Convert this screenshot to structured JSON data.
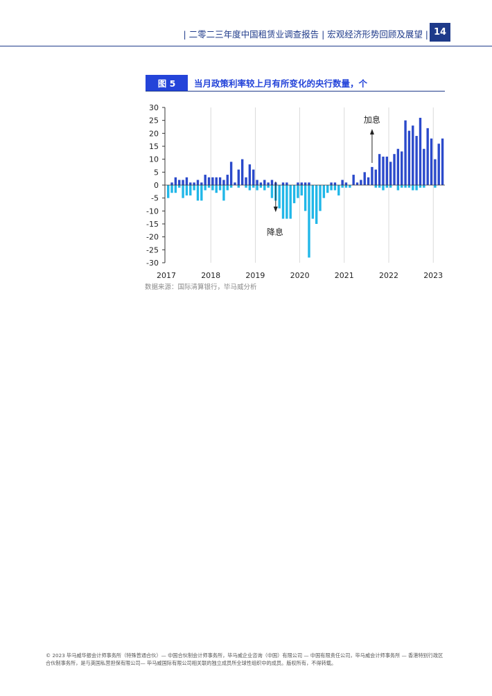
{
  "header": {
    "title": "| 二零二三年度中国租赁业调查报告 | 宏观经济形势回顾及展望 |",
    "page_number": "14"
  },
  "figure": {
    "tag": "图 5",
    "title": "当月政策利率较上月有所变化的央行数量，个",
    "source": "数据来源：国际清算银行，毕马威分析"
  },
  "chart_data": {
    "type": "bar",
    "series": [
      {
        "name": "加息",
        "color": "#2b4acb"
      },
      {
        "name": "降息",
        "color": "#21b7e8"
      }
    ],
    "x_tick_labels": [
      "2017",
      "2018",
      "2019",
      "2020",
      "2021",
      "2022",
      "2023"
    ],
    "y_ticks": [
      30,
      25,
      20,
      15,
      10,
      5,
      0,
      -5,
      -10,
      -15,
      -20,
      -25,
      -30
    ],
    "ylim": [
      -30,
      30
    ],
    "grid": "vertical-year-lines",
    "annotations": {
      "hike": "加息",
      "cut": "降息"
    },
    "months": [
      "2017-01",
      "2017-02",
      "2017-03",
      "2017-04",
      "2017-05",
      "2017-06",
      "2017-07",
      "2017-08",
      "2017-09",
      "2017-10",
      "2017-11",
      "2017-12",
      "2018-01",
      "2018-02",
      "2018-03",
      "2018-04",
      "2018-05",
      "2018-06",
      "2018-07",
      "2018-08",
      "2018-09",
      "2018-10",
      "2018-11",
      "2018-12",
      "2019-01",
      "2019-02",
      "2019-03",
      "2019-04",
      "2019-05",
      "2019-06",
      "2019-07",
      "2019-08",
      "2019-09",
      "2019-10",
      "2019-11",
      "2019-12",
      "2020-01",
      "2020-02",
      "2020-03",
      "2020-04",
      "2020-05",
      "2020-06",
      "2020-07",
      "2020-08",
      "2020-09",
      "2020-10",
      "2020-11",
      "2020-12",
      "2021-01",
      "2021-02",
      "2021-03",
      "2021-04",
      "2021-05",
      "2021-06",
      "2021-07",
      "2021-08",
      "2021-09",
      "2021-10",
      "2021-11",
      "2021-12",
      "2022-01",
      "2022-02",
      "2022-03",
      "2022-04",
      "2022-05",
      "2022-06",
      "2022-07",
      "2022-08",
      "2022-09",
      "2022-10",
      "2022-11",
      "2022-12",
      "2023-01",
      "2023-02",
      "2023-03",
      "2023-04",
      "2023-05",
      "2023-06"
    ],
    "hikes": [
      0,
      1,
      3,
      2,
      2,
      3,
      1,
      1,
      2,
      1,
      4,
      3,
      3,
      3,
      3,
      2,
      4,
      9,
      1,
      6,
      10,
      3,
      8,
      6,
      2,
      1,
      2,
      1,
      2,
      1,
      0,
      1,
      1,
      0,
      0,
      1,
      1,
      1,
      1,
      0,
      0,
      0,
      0,
      0,
      1,
      1,
      0,
      2,
      1,
      0,
      4,
      1,
      2,
      5,
      3,
      7,
      6,
      12,
      11,
      11,
      9,
      12,
      14,
      13,
      25,
      21,
      23,
      19,
      26,
      14,
      22,
      18,
      10,
      16,
      18,
      0,
      0,
      0
    ],
    "cuts": [
      -5,
      -3,
      -3,
      -1,
      -5,
      -4,
      -4,
      -2,
      -6,
      -6,
      -2,
      -1,
      -2,
      -3,
      -2,
      -6,
      -2,
      -1,
      0,
      -1,
      0,
      -1,
      -2,
      -1,
      -2,
      -1,
      -2,
      -1,
      -5,
      -6,
      -9,
      -13,
      -13,
      -13,
      -7,
      -5,
      -4,
      -10,
      -28,
      -13,
      -15,
      -10,
      -5,
      -3,
      -2,
      -2,
      -4,
      -1,
      -1,
      -1,
      0,
      0,
      0,
      0,
      0,
      0,
      -1,
      -1,
      -2,
      -1,
      -1,
      0,
      -2,
      -1,
      -1,
      -1,
      -2,
      -2,
      -1,
      -1,
      0,
      0,
      -1,
      0,
      0,
      0,
      0,
      0
    ]
  },
  "footer": {
    "text": "© 2023 毕马威华振会计师事务所（特殊普通合伙）— 中国合伙制会计师事务所，毕马威企业咨询（中国）有限公司 — 中国有限责任公司，毕马威会计师事务所 — 香港特别行政区合伙制事务所，是与英国私营担保有限公司— 毕马威国际有限公司相关联的独立成员所全球性组织中的成员。版权所有，不得转载。"
  }
}
